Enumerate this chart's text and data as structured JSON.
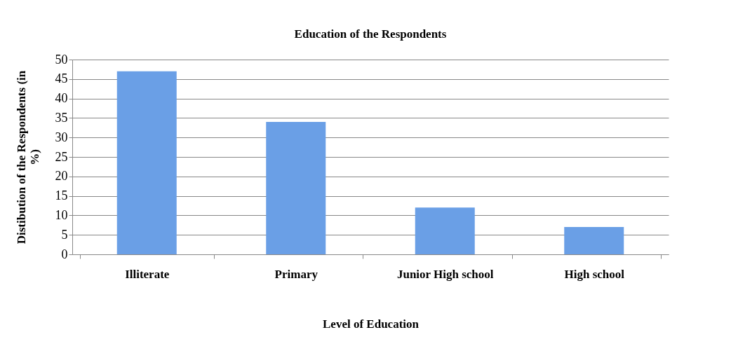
{
  "chart_data": {
    "type": "bar",
    "title": "Education of the Respondents",
    "xlabel": "Level of Education",
    "ylabel": "Distibution of the Respondents (in %)",
    "categories": [
      "Illiterate",
      "Primary",
      "Junior High school",
      "High school"
    ],
    "values": [
      47,
      34,
      12,
      7
    ],
    "color": "#6a9fe6",
    "ylim": [
      0,
      50
    ],
    "yticks": [
      0,
      5,
      10,
      15,
      20,
      25,
      30,
      35,
      40,
      45,
      50
    ],
    "grid": "y"
  }
}
